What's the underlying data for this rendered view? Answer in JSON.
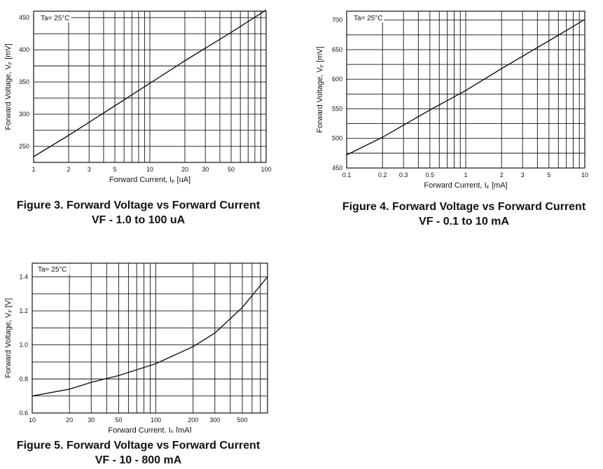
{
  "charts": [
    {
      "id": "fig3",
      "type": "line",
      "x_scale": "log",
      "xlim": [
        1,
        100
      ],
      "ylim": [
        225,
        460
      ],
      "x_ticks": [
        1,
        2,
        3,
        5,
        10,
        20,
        30,
        50,
        100
      ],
      "x_tick_labels": [
        "1",
        "2",
        "3",
        "5",
        "10",
        "20",
        "30",
        "50",
        "100"
      ],
      "y_ticks": [
        250,
        300,
        350,
        400,
        450
      ],
      "y_tick_labels": [
        "250",
        "300",
        "350",
        "400",
        "450"
      ],
      "xlabel": "Forward Current, I",
      "xlabel_sub": "F",
      "xlabel_unit": " [uA]",
      "ylabel": "Forward Voltage, V",
      "ylabel_sub": "F",
      "ylabel_unit": " [mV]",
      "annotation": "Ta= 25°C",
      "grid": true,
      "series": [
        {
          "x": [
            1,
            2,
            5,
            10,
            20,
            50,
            100
          ],
          "y": [
            234,
            267,
            313,
            348,
            383,
            427,
            462
          ]
        }
      ]
    },
    {
      "id": "fig4",
      "type": "line",
      "x_scale": "log",
      "xlim": [
        0.1,
        10
      ],
      "ylim": [
        450,
        715
      ],
      "x_ticks": [
        0.1,
        0.2,
        0.3,
        0.5,
        1,
        2,
        3,
        5,
        10
      ],
      "x_tick_labels": [
        "0.1",
        "0.2",
        "0.3",
        "0.5",
        "1",
        "2",
        "3",
        "5",
        "10"
      ],
      "y_ticks": [
        450,
        500,
        550,
        600,
        650,
        700
      ],
      "y_tick_labels": [
        "450",
        "500",
        "550",
        "600",
        "650",
        "700"
      ],
      "xlabel": "Forward Current, I",
      "xlabel_sub": "F",
      "xlabel_unit": " [mA]",
      "ylabel": "Forward Voltage, V",
      "ylabel_sub": "F",
      "ylabel_unit": " [mV]",
      "annotation": "Ta= 25°C",
      "grid": true,
      "series": [
        {
          "x": [
            0.1,
            0.2,
            0.5,
            1,
            2,
            5,
            10
          ],
          "y": [
            472,
            502,
            548,
            581,
            618,
            665,
            701
          ]
        }
      ]
    },
    {
      "id": "fig5",
      "type": "line",
      "x_scale": "log",
      "xlim": [
        10,
        800
      ],
      "ylim": [
        0.6,
        1.48
      ],
      "x_ticks": [
        10,
        20,
        30,
        50,
        100,
        200,
        300,
        500
      ],
      "x_tick_labels": [
        "10",
        "20",
        "30",
        "50",
        "100",
        "200",
        "300",
        "500"
      ],
      "y_ticks": [
        0.6,
        0.8,
        1.0,
        1.2,
        1.4
      ],
      "y_tick_labels": [
        "0.6",
        "0.8",
        "1.0",
        "1.2",
        "1.4"
      ],
      "xlabel": "Forward Current, I",
      "xlabel_sub": "F",
      "xlabel_unit": " [mA]",
      "ylabel": "Forward Voltage, V",
      "ylabel_sub": "F",
      "ylabel_unit": " [V]",
      "annotation": "Ta= 25°C",
      "grid": true,
      "series": [
        {
          "x": [
            10,
            20,
            30,
            50,
            100,
            200,
            300,
            500,
            800
          ],
          "y": [
            0.7,
            0.74,
            0.78,
            0.82,
            0.89,
            0.99,
            1.07,
            1.22,
            1.4
          ]
        }
      ]
    }
  ],
  "captions": {
    "fig3": {
      "title": "Figure 3. Forward Voltage vs Forward Current",
      "subtitle": "VF - 1.0 to 100 uA"
    },
    "fig4": {
      "title": "Figure 4. Forward Voltage vs Forward Current",
      "subtitle": "VF - 0.1 to 10 mA"
    },
    "fig5": {
      "title": "Figure 5. Forward Voltage vs Forward Current",
      "subtitle": "VF - 10 - 800 mA"
    }
  }
}
